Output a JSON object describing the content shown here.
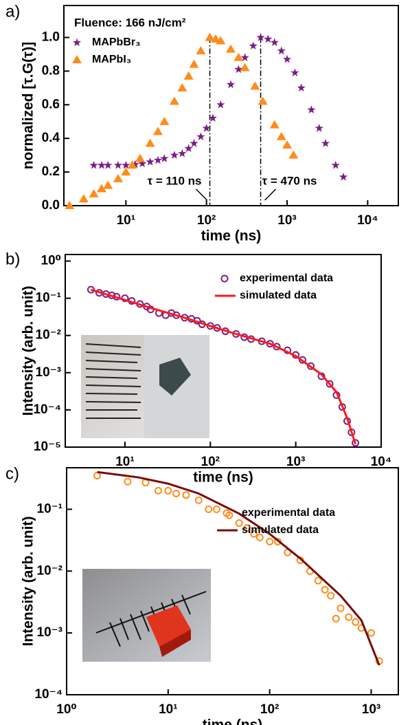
{
  "chart_data": [
    {
      "type": "scatter",
      "panel": "a)",
      "xlabel": "time (ns)",
      "ylabel": "normalized [τ.G(τ)]",
      "note": "Fluence: 166 nJ/cm²",
      "xscale": "log",
      "xlim": [
        1.7,
        24000
      ],
      "ylim": [
        0,
        1.19
      ],
      "xticks": [
        {
          "value": 10,
          "label": "10¹"
        },
        {
          "value": 100,
          "label": "10²"
        },
        {
          "value": 1000,
          "label": "10³"
        },
        {
          "value": 10000,
          "label": "10⁴"
        }
      ],
      "yticks": [
        {
          "value": 0,
          "label": "0.0"
        },
        0.2,
        0.4,
        0.6,
        0.8,
        {
          "value": 1,
          "label": "1.0"
        }
      ],
      "legend": "upper left",
      "annotations": [
        {
          "text": "τ = 110 ns",
          "x": 110
        },
        {
          "text": "τ = 470 ns",
          "x": 470
        }
      ],
      "series": [
        {
          "name": "MAPbBr₃",
          "color": "#7b1d85",
          "marker": "star",
          "mode": "markers",
          "x": [
            4,
            5,
            6,
            8,
            10,
            13,
            16,
            20,
            25,
            30,
            40,
            50,
            60,
            70,
            85,
            100,
            120,
            150,
            200,
            250,
            300,
            380,
            470,
            580,
            700,
            850,
            1000,
            1250,
            1500,
            2000,
            2500,
            3000,
            4000,
            5000
          ],
          "values": [
            0.24,
            0.24,
            0.24,
            0.24,
            0.24,
            0.245,
            0.25,
            0.26,
            0.27,
            0.28,
            0.3,
            0.31,
            0.34,
            0.37,
            0.41,
            0.46,
            0.52,
            0.6,
            0.72,
            0.81,
            0.88,
            0.95,
            1.0,
            0.99,
            0.97,
            0.92,
            0.87,
            0.79,
            0.7,
            0.57,
            0.46,
            0.37,
            0.24,
            0.17
          ]
        },
        {
          "name": "MAPbI₃",
          "color": "#ff8c1a",
          "marker": "triangle",
          "mode": "markers",
          "x": [
            2,
            3,
            4,
            5,
            6,
            8,
            10,
            12,
            15,
            20,
            25,
            30,
            40,
            50,
            60,
            70,
            85,
            110,
            130,
            150,
            200,
            250,
            300,
            400,
            500,
            700,
            850,
            1000,
            1200
          ],
          "values": [
            0.0,
            0.04,
            0.07,
            0.1,
            0.12,
            0.16,
            0.2,
            0.24,
            0.28,
            0.37,
            0.44,
            0.5,
            0.62,
            0.7,
            0.77,
            0.84,
            0.92,
            1.0,
            0.99,
            0.98,
            0.93,
            0.88,
            0.82,
            0.71,
            0.62,
            0.48,
            0.41,
            0.36,
            0.3
          ]
        }
      ]
    },
    {
      "type": "scatter",
      "panel": "b)",
      "xlabel": "time (ns)",
      "ylabel": "Intensity (arb. unit)",
      "xscale": "log",
      "yscale": "log",
      "xlim": [
        2,
        10000
      ],
      "ylim": [
        1e-05,
        1.5
      ],
      "xticks": [
        {
          "value": 10,
          "label": "10¹"
        },
        {
          "value": 100,
          "label": "10²"
        },
        {
          "value": 1000,
          "label": "10³"
        },
        {
          "value": 10000,
          "label": "10⁴"
        }
      ],
      "yticks": [
        {
          "value": 1,
          "label": "10⁰"
        },
        {
          "value": 0.1,
          "label": "10⁻¹"
        },
        {
          "value": 0.01,
          "label": "10⁻²"
        },
        {
          "value": 0.001,
          "label": "10⁻³"
        },
        {
          "value": 0.0001,
          "label": "10⁻⁴"
        },
        {
          "value": 1e-05,
          "label": "10⁻⁵"
        }
      ],
      "legend": "upper right",
      "series": [
        {
          "name": "experimental data",
          "color": "#7b1d85",
          "marker": "circle",
          "mode": "markers",
          "x": [
            4,
            5,
            6,
            7,
            8,
            10,
            12,
            15,
            18,
            20,
            25,
            30,
            35,
            40,
            50,
            60,
            70,
            80,
            100,
            120,
            150,
            200,
            250,
            300,
            400,
            500,
            600,
            800,
            1000,
            1200,
            1500,
            2000,
            2500,
            3000,
            3500,
            4000,
            4500,
            5000
          ],
          "values": [
            0.17,
            0.14,
            0.13,
            0.12,
            0.11,
            0.1,
            0.085,
            0.07,
            0.06,
            0.05,
            0.04,
            0.035,
            0.04,
            0.035,
            0.03,
            0.028,
            0.025,
            0.02,
            0.018,
            0.016,
            0.013,
            0.011,
            0.009,
            0.008,
            0.007,
            0.006,
            0.005,
            0.004,
            0.003,
            0.0022,
            0.0015,
            0.0008,
            0.0005,
            0.00025,
            0.00012,
            5e-05,
            2.5e-05,
            1.3e-05
          ]
        },
        {
          "name": "simulated data",
          "color": "#ff1a1a",
          "mode": "line",
          "x": [
            4,
            10,
            20,
            50,
            100,
            200,
            500,
            1000,
            2000,
            3000,
            4000,
            5000
          ],
          "values": [
            0.17,
            0.09,
            0.055,
            0.03,
            0.018,
            0.011,
            0.006,
            0.0028,
            0.0009,
            0.0003,
            6e-05,
            1.2e-05
          ]
        }
      ]
    },
    {
      "type": "scatter",
      "panel": "c)",
      "xlabel": "time (ns)",
      "ylabel": "Intensity (arb. unit)",
      "xscale": "log",
      "yscale": "log",
      "xlim": [
        1,
        1850
      ],
      "ylim": [
        0.0001,
        0.47
      ],
      "xticks": [
        {
          "value": 1,
          "label": "10⁰"
        },
        {
          "value": 10,
          "label": "10¹"
        },
        {
          "value": 100,
          "label": "10²"
        },
        {
          "value": 1000,
          "label": "10³"
        }
      ],
      "yticks": [
        {
          "value": 0.1,
          "label": "10⁻¹"
        },
        {
          "value": 0.01,
          "label": "10⁻²"
        },
        {
          "value": 0.001,
          "label": "10⁻³"
        },
        {
          "value": 0.0001,
          "label": "10⁻⁴"
        }
      ],
      "legend": "upper right",
      "series": [
        {
          "name": "experimental data",
          "color": "#ff8c1a",
          "marker": "circle",
          "mode": "markers",
          "x": [
            2,
            4,
            6,
            8,
            10,
            12,
            15,
            20,
            25,
            30,
            40,
            50,
            60,
            70,
            80,
            100,
            120,
            150,
            200,
            250,
            300,
            350,
            400,
            450,
            500,
            600,
            700,
            800,
            1000,
            1200
          ],
          "values": [
            0.35,
            0.28,
            0.27,
            0.2,
            0.2,
            0.18,
            0.17,
            0.14,
            0.1,
            0.1,
            0.08,
            0.06,
            0.05,
            0.04,
            0.035,
            0.03,
            0.03,
            0.02,
            0.015,
            0.01,
            0.007,
            0.005,
            0.004,
            0.0017,
            0.0025,
            0.0018,
            0.0015,
            0.0012,
            0.001,
            0.00035
          ]
        },
        {
          "name": "simulated data",
          "color": "#7a0a0a",
          "mode": "line",
          "x": [
            2,
            5,
            10,
            20,
            50,
            100,
            200,
            500,
            800,
            1200
          ],
          "values": [
            0.4,
            0.33,
            0.26,
            0.18,
            0.085,
            0.04,
            0.016,
            0.004,
            0.0016,
            0.0003
          ]
        }
      ]
    }
  ]
}
